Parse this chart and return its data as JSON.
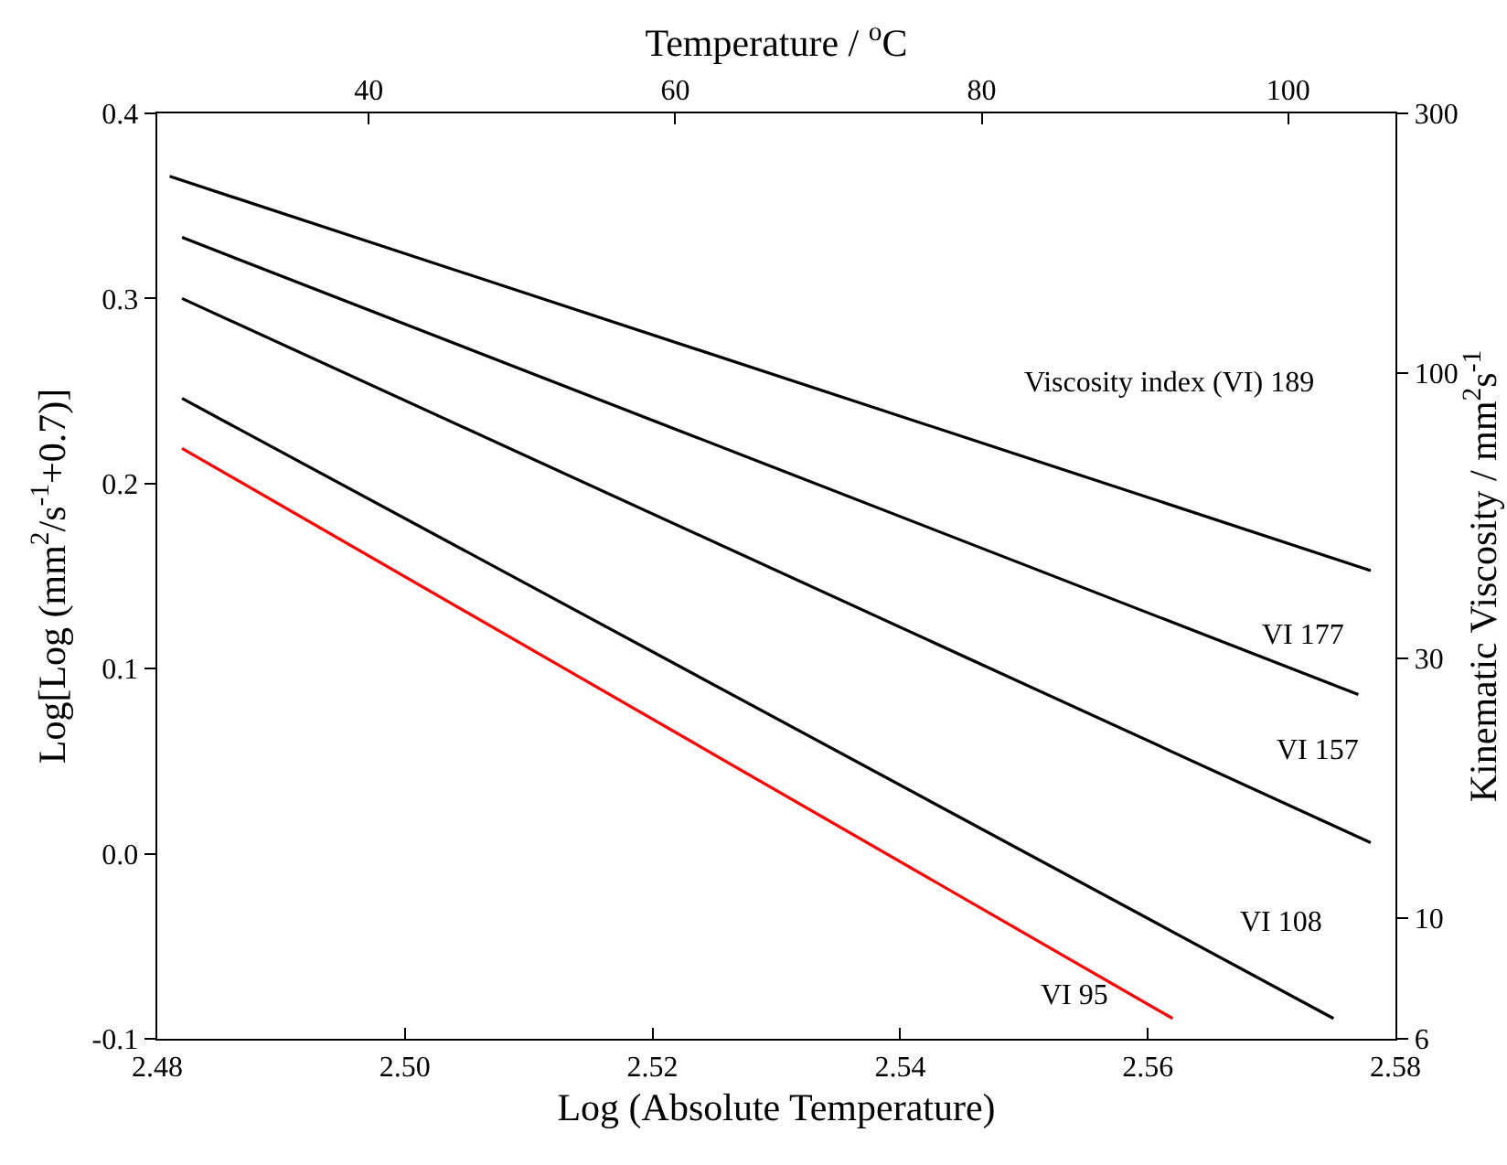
{
  "chart_data": {
    "type": "line",
    "xlabel": "Log (Absolute Temperature)",
    "ylabel": "Log[Log (mm$^{2}$/s$^{-1}$+0.7)]",
    "x2label": "Temperature / $^{o}$C",
    "y2label": "Kinematic Viscosity / mm$^{2}$s$^{-1}$",
    "xlim": [
      2.48,
      2.58
    ],
    "xticks": [
      {
        "value": 2.48,
        "label": "2.48"
      },
      {
        "value": 2.5,
        "label": "2.50"
      },
      {
        "value": 2.52,
        "label": "2.52"
      },
      {
        "value": 2.54,
        "label": "2.54"
      },
      {
        "value": 2.56,
        "label": "2.56"
      },
      {
        "value": 2.58,
        "label": "2.58"
      }
    ],
    "ylim": [
      -0.1,
      0.4
    ],
    "yticks": [
      -0.1,
      {
        "value": 0,
        "label": "0.0"
      },
      0.1,
      0.2,
      0.3,
      0.4
    ],
    "x2lim": [
      26.2,
      107.0
    ],
    "x2ticks": [
      40,
      60,
      80,
      100
    ],
    "y2lim": [
      6,
      300
    ],
    "y2ticks": [
      6,
      10,
      30,
      100,
      300
    ],
    "log": "y2",
    "grid": false,
    "legend": false,
    "marker": "none",
    "line_style": "solid",
    "series": [
      {
        "name": "Viscosity index (VI) 189",
        "color": "#000000",
        "x": [
          2.481,
          2.578
        ],
        "values": [
          0.366,
          0.153
        ]
      },
      {
        "name": "VI 177",
        "color": "#000000",
        "x": [
          2.482,
          2.577
        ],
        "values": [
          0.333,
          0.086
        ]
      },
      {
        "name": "VI 157",
        "color": "#000000",
        "x": [
          2.482,
          2.578
        ],
        "values": [
          0.3,
          0.006
        ]
      },
      {
        "name": "VI 108",
        "color": "#000000",
        "x": [
          2.482,
          2.575
        ],
        "values": [
          0.246,
          -0.089
        ]
      },
      {
        "name": "VI 95",
        "color": "#ff0000",
        "x": [
          2.482,
          2.562
        ],
        "values": [
          0.219,
          -0.089
        ]
      }
    ]
  }
}
